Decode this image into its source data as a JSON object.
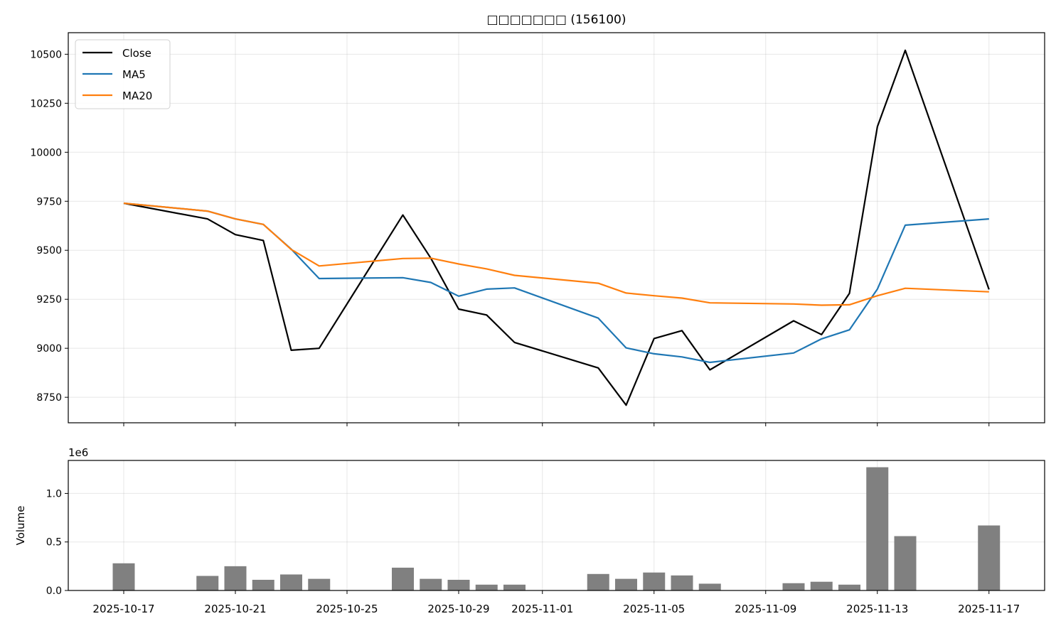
{
  "chart_data": [
    {
      "type": "line",
      "title": "□□□□□□□ (156100)",
      "xlabel": "",
      "ylabel": "",
      "ylim": [
        8620,
        10610
      ],
      "yticks": [
        8750,
        9000,
        9250,
        9500,
        9750,
        10000,
        10250,
        10500
      ],
      "legend": {
        "position": "top-left",
        "entries": [
          "Close",
          "MA5",
          "MA20"
        ]
      },
      "grid": true,
      "x": [
        "2025-10-17",
        "2025-10-20",
        "2025-10-21",
        "2025-10-22",
        "2025-10-23",
        "2025-10-24",
        "2025-10-27",
        "2025-10-28",
        "2025-10-29",
        "2025-10-30",
        "2025-10-31",
        "2025-11-03",
        "2025-11-04",
        "2025-11-05",
        "2025-11-06",
        "2025-11-07",
        "2025-11-10",
        "2025-11-11",
        "2025-11-12",
        "2025-11-13",
        "2025-11-14",
        "2025-11-17"
      ],
      "series": [
        {
          "name": "Close",
          "color": "#000000",
          "values": [
            9740,
            9660,
            9580,
            9550,
            8990,
            9000,
            9680,
            9460,
            9200,
            9170,
            9030,
            8900,
            8710,
            9050,
            9090,
            8890,
            9140,
            9070,
            9280,
            10130,
            10520,
            9300
          ]
        },
        {
          "name": "MA5",
          "color": "#1f77b4",
          "values": [
            9740,
            9700,
            9660,
            9632,
            9506,
            9356,
            9360,
            9336,
            9266,
            9302,
            9308,
            9154,
            9002,
            8972,
            8956,
            8928,
            8976,
            9048,
            9094,
            9302,
            9628,
            9660
          ]
        },
        {
          "name": "MA20",
          "color": "#ff7f0e",
          "values": [
            9740,
            9700,
            9660,
            9632,
            9504,
            9420,
            9458,
            9460,
            9430,
            9405,
            9372,
            9332,
            9282,
            9268,
            9256,
            9232,
            9226,
            9220,
            9222,
            9268,
            9306,
            9288
          ]
        }
      ]
    },
    {
      "type": "bar",
      "title": "",
      "xlabel": "",
      "ylabel": "Volume",
      "scale_label": "1e6",
      "ylim": [
        0,
        1.34
      ],
      "yticks": [
        0.0,
        0.5,
        1.0
      ],
      "ytick_labels": [
        "0.0",
        "0.5",
        "1.0"
      ],
      "bar_color": "#808080",
      "grid": true,
      "x": [
        "2025-10-17",
        "2025-10-20",
        "2025-10-21",
        "2025-10-22",
        "2025-10-23",
        "2025-10-24",
        "2025-10-27",
        "2025-10-28",
        "2025-10-29",
        "2025-10-30",
        "2025-10-31",
        "2025-11-03",
        "2025-11-04",
        "2025-11-05",
        "2025-11-06",
        "2025-11-07",
        "2025-11-10",
        "2025-11-11",
        "2025-11-12",
        "2025-11-13",
        "2025-11-14",
        "2025-11-17"
      ],
      "values": [
        0.28,
        0.15,
        0.25,
        0.11,
        0.165,
        0.12,
        0.235,
        0.12,
        0.11,
        0.06,
        0.06,
        0.17,
        0.12,
        0.185,
        0.155,
        0.07,
        0.075,
        0.09,
        0.06,
        1.27,
        0.56,
        0.67
      ],
      "xticks": [
        "2025-10-17",
        "2025-10-21",
        "2025-10-25",
        "2025-10-29",
        "2025-11-01",
        "2025-11-05",
        "2025-11-09",
        "2025-11-13",
        "2025-11-17"
      ]
    }
  ]
}
